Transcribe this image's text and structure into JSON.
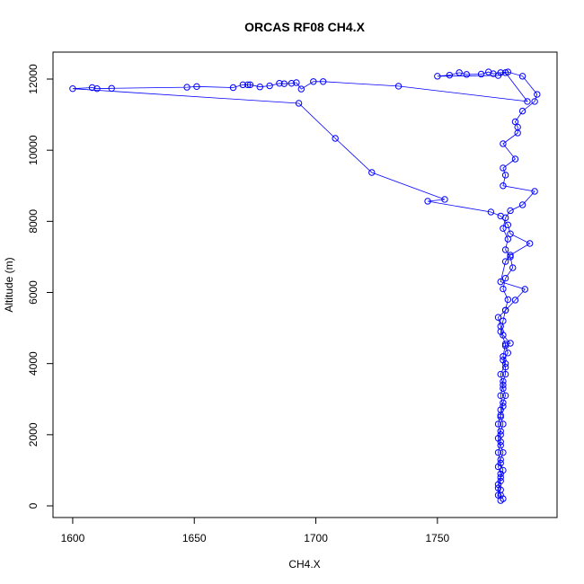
{
  "chart_data": {
    "type": "line",
    "title": "ORCAS RF08 CH4.X",
    "x_label": "CH4.X",
    "y_label": "Altitude (m)",
    "xlim": [
      1591.9,
      1799.2
    ],
    "ylim": [
      -328,
      12758
    ],
    "xticks": [
      1600,
      1650,
      1700,
      1750
    ],
    "yticks": [
      0,
      2000,
      4000,
      6000,
      8000,
      10000,
      12000
    ],
    "markers": true,
    "x": [
      1776,
      1776,
      1775,
      1776,
      1776,
      1775,
      1776,
      1777,
      1776,
      1775,
      1776,
      1777,
      1776,
      1776,
      1777,
      1778,
      1777,
      1777,
      1778,
      1778,
      1777,
      1779,
      1778,
      1780,
      1777,
      1776,
      1775,
      1778,
      1779,
      1777,
      1778,
      1781,
      1780,
      1778,
      1779,
      1777,
      1778,
      1780,
      1785,
      1790,
      1777,
      1778,
      1777,
      1782,
      1777,
      1783,
      1783,
      1782,
      1785,
      1790,
      1791,
      1785,
      1779,
      1776,
      1773,
      1771,
      1768,
      1762,
      1759,
      1755,
      1750,
      1775,
      1778,
      1787,
      1734,
      1703,
      1699,
      1694,
      1692,
      1690,
      1687,
      1685,
      1681,
      1677,
      1673,
      1672,
      1670,
      1666,
      1651,
      1647,
      1616,
      1610,
      1608,
      1600,
      1693,
      1708,
      1723,
      1753,
      1746,
      1772,
      1776,
      1779,
      1780,
      1788,
      1780,
      1778,
      1776,
      1786,
      1782,
      1778,
      1777,
      1776,
      1778,
      1777,
      1778,
      1776,
      1777,
      1776,
      1777,
      1776,
      1775,
      1776,
      1776,
      1775,
      1776,
      1777,
      1776,
      1775,
      1776,
      1775,
      1777
    ],
    "series": [
      {
        "name": "CH4.X",
        "color": "#0000ff",
        "values": [
          150,
          300,
          500,
          700,
          900,
          1100,
          1300,
          1500,
          1700,
          1900,
          2100,
          2300,
          2500,
          2700,
          2900,
          3100,
          3300,
          3500,
          3700,
          3900,
          4100,
          4300,
          4500,
          4573,
          4800,
          5050,
          5300,
          5500,
          5800,
          6100,
          6400,
          6695,
          7000,
          7200,
          7500,
          7800,
          8100,
          8300,
          8464,
          8843,
          9000,
          9300,
          9500,
          9752,
          10182,
          10485,
          10650,
          10800,
          11100,
          11370,
          11570,
          12080,
          12200,
          12180,
          12150,
          12200,
          12140,
          12130,
          12180,
          12110,
          12080,
          12100,
          12180,
          11370,
          11800,
          11930,
          11930,
          11720,
          11900,
          11880,
          11870,
          11880,
          11810,
          11780,
          11840,
          11840,
          11840,
          11760,
          11790,
          11770,
          11740,
          11730,
          11760,
          11730,
          11319,
          10333,
          9373,
          8616,
          8565,
          8262,
          8150,
          7900,
          7650,
          7377,
          7050,
          6870,
          6300,
          6089,
          5786,
          5500,
          5200,
          4900,
          4550,
          4200,
          4000,
          3700,
          3400,
          3100,
          2800,
          2550,
          2300,
          2000,
          1800,
          1500,
          1200,
          1000,
          800,
          600,
          450,
          300,
          200
        ]
      }
    ]
  }
}
